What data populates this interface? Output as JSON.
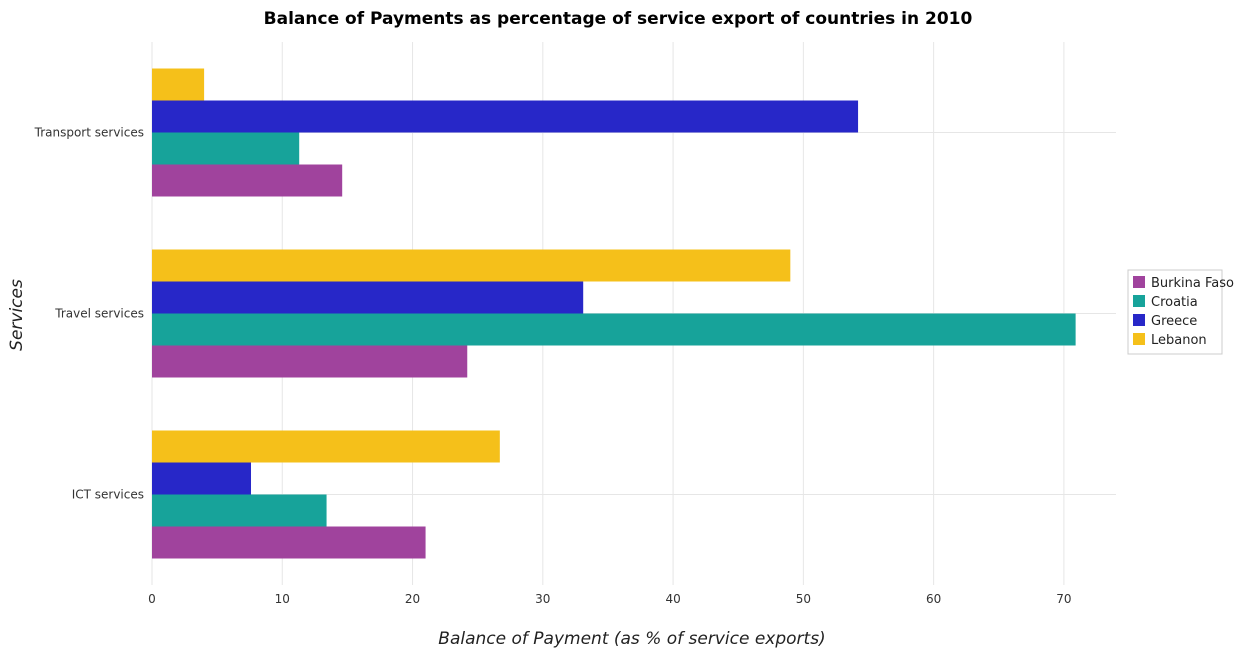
{
  "chart_data": {
    "type": "bar",
    "orientation": "horizontal",
    "title": "Balance of Payments as percentage of service export of countries in 2010",
    "xlabel": "Balance of Payment (as % of service exports)",
    "ylabel": "Services",
    "categories": [
      "Transport services",
      "Travel services",
      "ICT services"
    ],
    "series": [
      {
        "name": "Burkina Faso",
        "color": "#a0439d",
        "values": [
          14.6,
          24.2,
          21.0
        ]
      },
      {
        "name": "Croatia",
        "color": "#17a39a",
        "values": [
          11.3,
          70.9,
          13.4
        ]
      },
      {
        "name": "Greece",
        "color": "#2727c8",
        "values": [
          54.2,
          33.1,
          7.6
        ]
      },
      {
        "name": "Lebanon",
        "color": "#f5c01a",
        "values": [
          4.0,
          49.0,
          26.7
        ]
      }
    ],
    "xlim": [
      0,
      74
    ],
    "xticks": [
      0,
      10,
      20,
      30,
      40,
      50,
      60,
      70
    ],
    "grid": true,
    "legend_position": "right"
  }
}
